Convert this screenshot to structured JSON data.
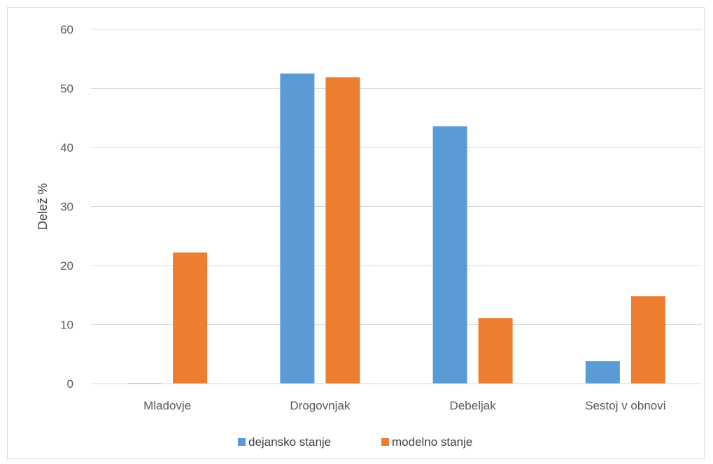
{
  "chart_data": {
    "type": "bar",
    "title": "",
    "xlabel": "",
    "ylabel": "Delež %",
    "ylim": [
      0,
      60
    ],
    "yticks": [
      0,
      10,
      20,
      30,
      40,
      50,
      60
    ],
    "grid": true,
    "legend_position": "bottom",
    "categories": [
      "Mladovje",
      "Drogovnjak",
      "Debeljak",
      "Sestoj v obnovi"
    ],
    "series": [
      {
        "name": "dejansko stanje",
        "color": "#5b9bd5",
        "values": [
          0.1,
          52.5,
          43.6,
          3.8
        ]
      },
      {
        "name": "modelno stanje",
        "color": "#ed7d31",
        "values": [
          22.2,
          51.9,
          11.1,
          14.8
        ]
      }
    ]
  }
}
